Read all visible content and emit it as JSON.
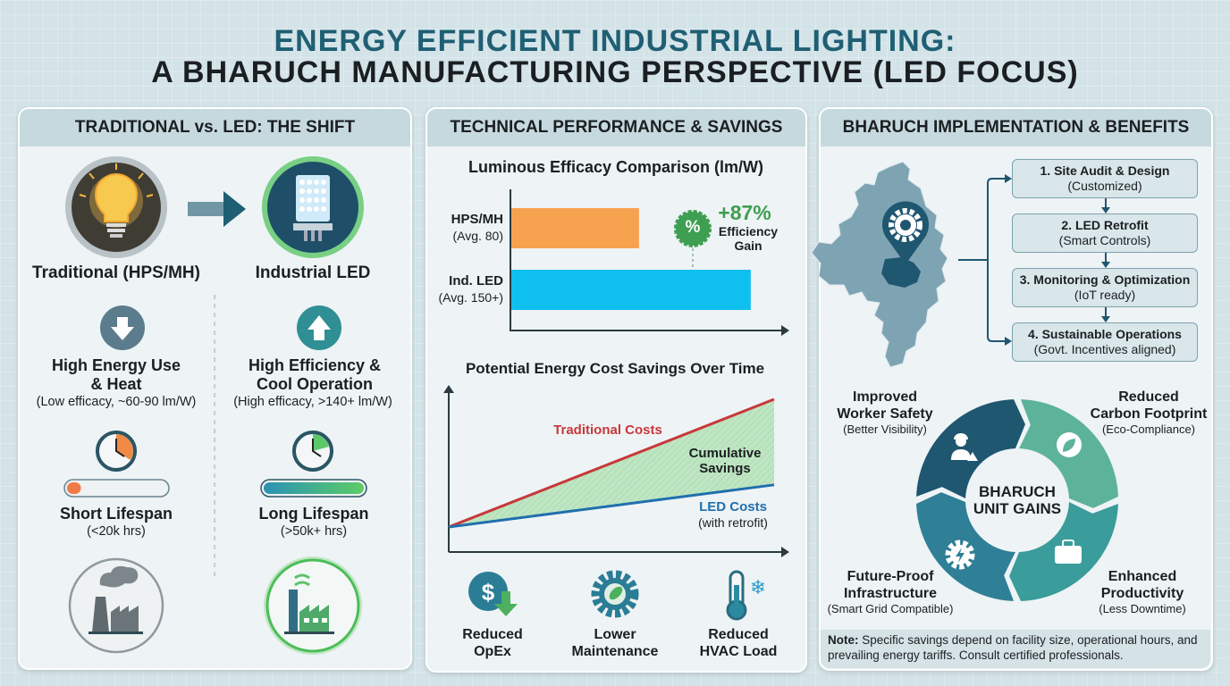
{
  "title": {
    "line1": "ENERGY EFFICIENT INDUSTRIAL LIGHTING:",
    "line2": "A BHARUCH MANUFACTURING PERSPECTIVE (LED FOCUS)",
    "color": "#1f5f74"
  },
  "panel1": {
    "header": "TRADITIONAL vs. LED: THE SHIFT",
    "left": {
      "label": "Traditional (HPS/MH)",
      "icon": "light-bulb-icon",
      "energy_title1": "High Energy Use",
      "energy_title2": "& Heat",
      "energy_sub": "(Low efficacy, ~60-90 lm/W)",
      "lifespan_title": "Short Lifespan",
      "lifespan_sub": "(<20k hrs)",
      "lifespan_fill": 0.2,
      "lifespan_color": "#f07a45",
      "factory_icon": "polluting-factory-icon"
    },
    "right": {
      "label": "Industrial LED",
      "icon": "led-lamp-icon",
      "energy_title1": "High Efficiency &",
      "energy_title2": "Cool Operation",
      "energy_sub": "(High efficacy, >140+ lm/W)",
      "lifespan_title": "Long Lifespan",
      "lifespan_sub": "(>50k+ hrs)",
      "lifespan_fill": 1.0,
      "lifespan_color": "#4cc46a",
      "factory_icon": "green-factory-icon"
    }
  },
  "panel2": {
    "header": "TECHNICAL PERFORMANCE & SAVINGS",
    "chart_data": [
      {
        "type": "bar",
        "title": "Luminous Efficacy Comparison (lm/W)",
        "categories": [
          "HPS/MH",
          "Ind. LED"
        ],
        "category_notes": [
          "(Avg. 80)",
          "(Avg. 150+)"
        ],
        "values": [
          80,
          150
        ],
        "colors": [
          "#f7a24f",
          "#0fbfef"
        ],
        "annotation": {
          "value": "+87%",
          "text1": "Efficiency",
          "text2": "Gain",
          "badge": "%"
        }
      },
      {
        "type": "line",
        "title": "Potential Energy Cost Savings Over Time",
        "series": [
          {
            "name": "Traditional Costs",
            "color": "#c8383a",
            "values": [
              0,
              1
            ]
          },
          {
            "name": "LED Costs",
            "note": "(with retrofit)",
            "color": "#1f6fae",
            "values": [
              0,
              0.33
            ]
          }
        ],
        "area_label1": "Cumulative",
        "area_label2": "Savings"
      }
    ],
    "benefits": [
      {
        "icon": "dollar-down-icon",
        "line1": "Reduced",
        "line2": "OpEx"
      },
      {
        "icon": "gear-leaf-icon",
        "line1": "Lower",
        "line2": "Maintenance"
      },
      {
        "icon": "thermometer-snowflake-icon",
        "line1": "Reduced",
        "line2": "HVAC Load"
      }
    ]
  },
  "panel3": {
    "header": "BHARUCH IMPLEMENTATION & BENEFITS",
    "steps": [
      {
        "title": "1. Site Audit & Design",
        "sub": "(Customized)"
      },
      {
        "title": "2. LED Retrofit",
        "sub": "(Smart Controls)"
      },
      {
        "title": "3. Monitoring & Optimization",
        "sub": "(IoT ready)"
      },
      {
        "title": "4. Sustainable Operations",
        "sub": "(Govt. Incentives aligned)"
      }
    ],
    "cycle_center1": "BHARUCH",
    "cycle_center2": "UNIT GAINS",
    "gains": [
      {
        "l1": "Improved",
        "l2": "Worker Safety",
        "sub": "(Better Visibility)",
        "color": "#1f5670"
      },
      {
        "l1": "Reduced",
        "l2": "Carbon Footprint",
        "sub": "(Eco-Compliance)",
        "color": "#5db39a"
      },
      {
        "l1": "Enhanced",
        "l2": "Productivity",
        "sub": "(Less Downtime)",
        "color": "#3a9c9b"
      },
      {
        "l1": "Future-Proof",
        "l2": "Infrastructure",
        "sub": "(Smart Grid Compatible)",
        "color": "#2f7f96"
      }
    ],
    "note_label": "Note:",
    "note_text": " Specific savings depend on facility size, operational hours, and prevailing energy tariffs. Consult certified professionals."
  }
}
